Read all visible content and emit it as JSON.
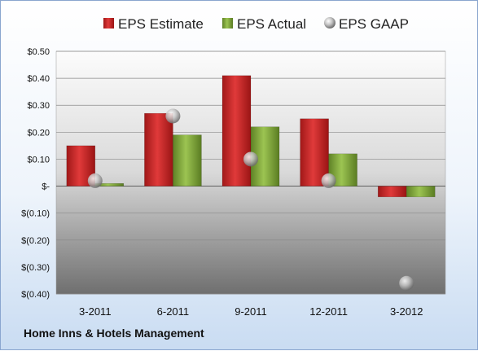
{
  "chart_data": {
    "type": "bar",
    "categories": [
      "3-2011",
      "6-2011",
      "9-2011",
      "12-2011",
      "3-2012"
    ],
    "series": [
      {
        "name": "EPS Estimate",
        "kind": "bar",
        "color": "#cc2222",
        "values": [
          0.15,
          0.27,
          0.41,
          0.25,
          -0.04
        ]
      },
      {
        "name": "EPS Actual",
        "kind": "bar",
        "color": "#7fa83a",
        "values": [
          0.01,
          0.19,
          0.22,
          0.12,
          -0.04
        ]
      },
      {
        "name": "EPS GAAP",
        "kind": "marker",
        "color": "#b9b9b9",
        "values": [
          0.02,
          0.26,
          0.1,
          0.02,
          -0.36
        ]
      }
    ],
    "ylim": [
      -0.4,
      0.5
    ],
    "yticks": [
      0.5,
      0.4,
      0.3,
      0.2,
      0.1,
      0,
      -0.1,
      -0.2,
      -0.3,
      -0.4
    ],
    "ytick_labels": [
      "$0.50",
      "$0.40",
      "$0.30",
      "$0.20",
      "$0.10",
      "$-",
      "$(0.10)",
      "$(0.20)",
      "$(0.30)",
      "$(0.40)"
    ],
    "grid": true,
    "legend_position": "top"
  },
  "footer": {
    "company": "Home Inns & Hotels Management"
  }
}
